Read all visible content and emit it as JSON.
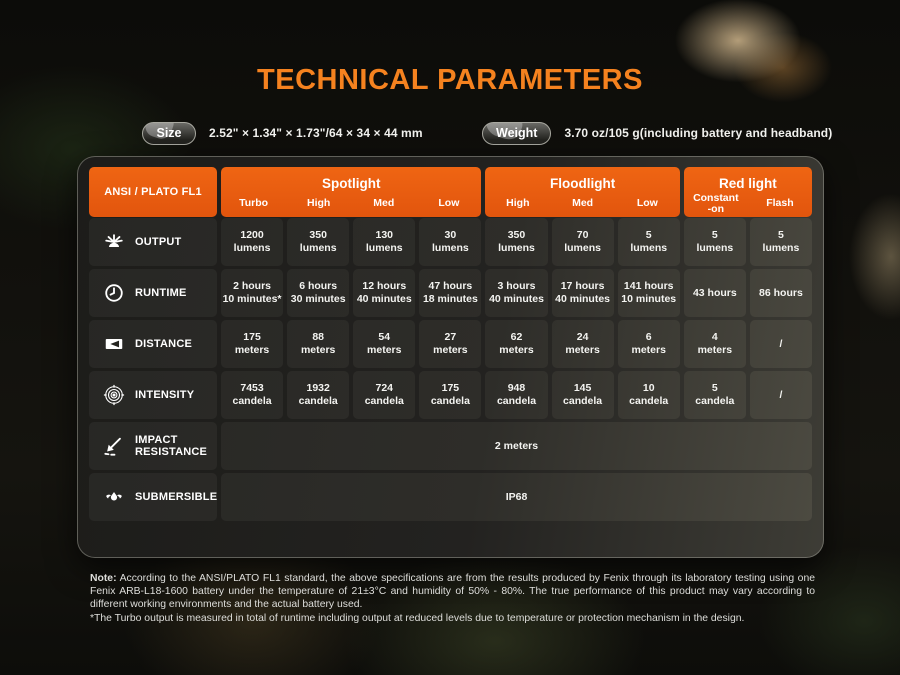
{
  "header": {
    "title": "TECHNICAL PARAMETERS",
    "size_label": "Size",
    "size_value": "2.52\" × 1.34\" × 1.73\"/64 × 34 × 44 mm",
    "weight_label": "Weight",
    "weight_value": "3.70 oz/105 g(including battery and headband)"
  },
  "colors": {
    "title_orange": "#f5821f",
    "header_orange": "#e8590e",
    "panel_dark": "#232220"
  },
  "table": {
    "corner_label": "ANSI / PLATO FL1",
    "groups": [
      {
        "label": "Spotlight",
        "cols": [
          "Turbo",
          "High",
          "Med",
          "Low"
        ]
      },
      {
        "label": "Floodlight",
        "cols": [
          "High",
          "Med",
          "Low"
        ]
      },
      {
        "label": "Red light",
        "cols": [
          "Constant\n-on",
          "Flash"
        ]
      }
    ],
    "rows": [
      {
        "key": "output",
        "icon": "output-icon",
        "label": "OUTPUT",
        "values": [
          "1200\nlumens",
          "350\nlumens",
          "130\nlumens",
          "30\nlumens",
          "350\nlumens",
          "70\nlumens",
          "5\nlumens",
          "5\nlumens",
          "5\nlumens"
        ]
      },
      {
        "key": "runtime",
        "icon": "runtime-icon",
        "label": "RUNTIME",
        "values": [
          "2 hours\n10 minutes*",
          "6 hours\n30 minutes",
          "12 hours\n40 minutes",
          "47 hours\n18 minutes",
          "3 hours\n40 minutes",
          "17 hours\n40 minutes",
          "141 hours\n10 minutes",
          "43 hours",
          "86 hours"
        ]
      },
      {
        "key": "distance",
        "icon": "distance-icon",
        "label": "DISTANCE",
        "values": [
          "175\nmeters",
          "88\nmeters",
          "54\nmeters",
          "27\nmeters",
          "62\nmeters",
          "24\nmeters",
          "6\nmeters",
          "4\nmeters",
          "/"
        ]
      },
      {
        "key": "intensity",
        "icon": "intensity-icon",
        "label": "INTENSITY",
        "values": [
          "7453\ncandela",
          "1932\ncandela",
          "724\ncandela",
          "175\ncandela",
          "948\ncandela",
          "145\ncandela",
          "10\ncandela",
          "5\ncandela",
          "/"
        ]
      },
      {
        "key": "impact-resistance",
        "icon": "impact-icon",
        "label": "IMPACT RESISTANCE",
        "span_value": "2 meters"
      },
      {
        "key": "submersible",
        "icon": "submersible-icon",
        "label": "SUBMERSIBLE",
        "span_value": "IP68"
      }
    ]
  },
  "note": {
    "prefix": "Note:",
    "body": "According to the ANSI/PLATO FL1 standard, the above specifications are from the results produced by Fenix through its laboratory testing using one Fenix ARB-L18-1600 battery under the temperature of 21±3°C and humidity of 50% - 80%. The true performance of this product may vary according to different working environments and the actual battery used.",
    "turbo_note": "*The Turbo output is measured in total of runtime including output at reduced levels due to temperature or protection mechanism in the design."
  }
}
